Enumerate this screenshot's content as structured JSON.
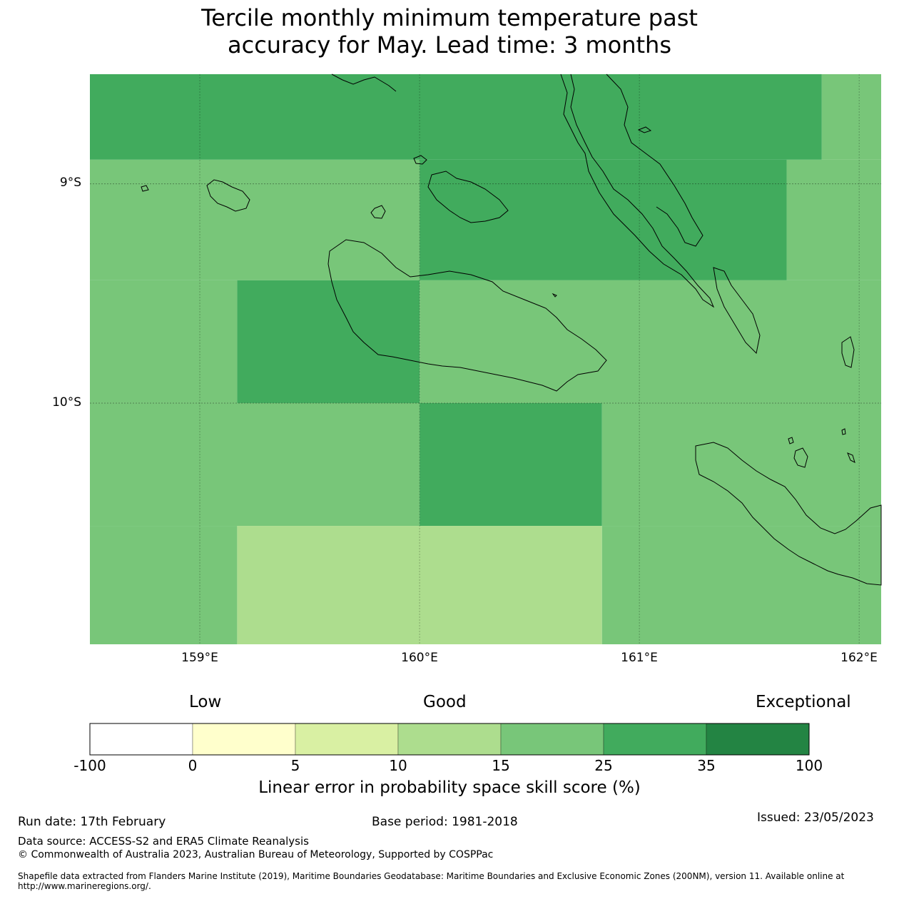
{
  "title_line1": "Tercile monthly minimum temperature past",
  "title_line2": "accuracy for May. Lead time: 3 months",
  "axes": {
    "lat_labels": [
      "9°S",
      "10°S"
    ],
    "lon_labels": [
      "159°E",
      "160°E",
      "161°E",
      "162°E"
    ],
    "lat_values": [
      -9,
      -10
    ],
    "lon_values": [
      159,
      160,
      161,
      162
    ],
    "extent": {
      "lon_min": 158.5,
      "lon_max": 162.1,
      "lat_min": -11.1,
      "lat_max": -8.5
    }
  },
  "colors": {
    "c_neg": "#ffffff",
    "c0_5": "#ffffcc",
    "c5_10": "#d9f0a3",
    "c10_15": "#addd8e",
    "c15_25": "#78c679",
    "c25_35": "#41ab5d",
    "c35_100": "#238443"
  },
  "grid_cells": [
    {
      "lon": [
        158.5,
        161.83
      ],
      "lat": [
        -8.5,
        -8.89
      ],
      "value_class": "25-35"
    },
    {
      "lon": [
        161.83,
        162.1
      ],
      "lat": [
        -8.5,
        -8.89
      ],
      "value_class": "15-25"
    },
    {
      "lon": [
        158.5,
        160.0
      ],
      "lat": [
        -8.89,
        -9.44
      ],
      "value_class": "15-25"
    },
    {
      "lon": [
        160.0,
        161.67
      ],
      "lat": [
        -8.89,
        -9.44
      ],
      "value_class": "25-35"
    },
    {
      "lon": [
        161.67,
        162.1
      ],
      "lat": [
        -8.89,
        -9.44
      ],
      "value_class": "15-25"
    },
    {
      "lon": [
        158.5,
        159.17
      ],
      "lat": [
        -9.44,
        -10.0
      ],
      "value_class": "15-25"
    },
    {
      "lon": [
        159.17,
        160.0
      ],
      "lat": [
        -9.44,
        -10.0
      ],
      "value_class": "25-35"
    },
    {
      "lon": [
        160.0,
        162.1
      ],
      "lat": [
        -9.44,
        -10.0
      ],
      "value_class": "15-25"
    },
    {
      "lon": [
        158.5,
        160.0
      ],
      "lat": [
        -10.0,
        -10.56
      ],
      "value_class": "15-25"
    },
    {
      "lon": [
        160.0,
        160.83
      ],
      "lat": [
        -10.0,
        -10.56
      ],
      "value_class": "25-35"
    },
    {
      "lon": [
        160.83,
        162.1
      ],
      "lat": [
        -10.0,
        -10.56
      ],
      "value_class": "15-25"
    },
    {
      "lon": [
        158.5,
        159.17
      ],
      "lat": [
        -10.56,
        -11.1
      ],
      "value_class": "15-25"
    },
    {
      "lon": [
        159.17,
        160.83
      ],
      "lat": [
        -10.56,
        -11.1
      ],
      "value_class": "10-15"
    },
    {
      "lon": [
        160.83,
        162.1
      ],
      "lat": [
        -10.56,
        -11.1
      ],
      "value_class": "15-25"
    }
  ],
  "colorbar": {
    "categories": [
      "Low",
      "Good",
      "Exceptional"
    ],
    "ticks": [
      "-100",
      "0",
      "5",
      "10",
      "15",
      "25",
      "35",
      "100"
    ],
    "label": "Linear error in probability space skill score (%)",
    "bins": [
      {
        "range": "-100 to 0",
        "color": "#ffffff"
      },
      {
        "range": "0 to 5",
        "color": "#ffffcc"
      },
      {
        "range": "5 to 10",
        "color": "#d9f0a3"
      },
      {
        "range": "10 to 15",
        "color": "#addd8e"
      },
      {
        "range": "15 to 25",
        "color": "#78c679"
      },
      {
        "range": "25 to 35",
        "color": "#41ab5d"
      },
      {
        "range": "35 to 100",
        "color": "#238443"
      }
    ]
  },
  "footer": {
    "run_date": "Run date: 17th February",
    "base_period": "Base period: 1981-2018",
    "issued": "Issued: 23/05/2023",
    "data_source": "Data source: ACCESS-S2 and ERA5 Climate Reanalysis",
    "copyright": "© Commonwealth of Australia 2023, Australian Bureau of Meteorology, Supported by COSPPac",
    "shapefile_1": "Shapefile data extracted from Flanders Marine Institute (2019), Maritime Boundaries Geodatabase: Maritime Boundaries and Exclusive Economic Zones (200NM), version 11. Available online at",
    "shapefile_2": "http://www.marineregions.org/."
  }
}
